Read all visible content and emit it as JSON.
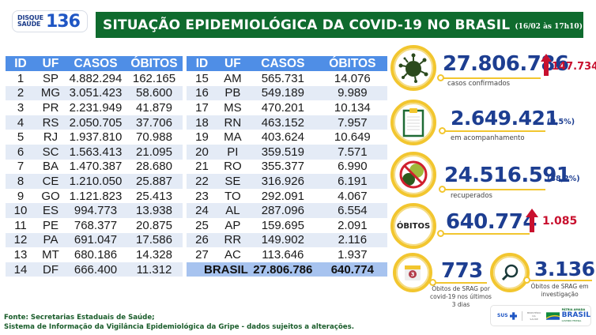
{
  "header": {
    "logo_small_line1": "DISQUE",
    "logo_small_line2": "SAÚDE",
    "logo_number": "136",
    "title": "SITUAÇÃO EPIDEMIOLÓGICA DA COVID-19 NO BRASIL",
    "date": "(16/02 às 17h10)"
  },
  "table": {
    "columns": [
      "ID",
      "UF",
      "CASOS",
      "ÓBITOS"
    ],
    "left_rows": [
      [
        "1",
        "SP",
        "4.882.294",
        "162.165"
      ],
      [
        "2",
        "MG",
        "3.051.423",
        "58.600"
      ],
      [
        "3",
        "PR",
        "2.231.949",
        "41.879"
      ],
      [
        "4",
        "RS",
        "2.050.705",
        "37.706"
      ],
      [
        "5",
        "RJ",
        "1.937.810",
        "70.988"
      ],
      [
        "6",
        "SC",
        "1.563.413",
        "21.095"
      ],
      [
        "7",
        "BA",
        "1.470.387",
        "28.680"
      ],
      [
        "8",
        "CE",
        "1.210.050",
        "25.887"
      ],
      [
        "9",
        "GO",
        "1.121.823",
        "25.413"
      ],
      [
        "10",
        "ES",
        "994.773",
        "13.938"
      ],
      [
        "11",
        "PE",
        "768.377",
        "20.875"
      ],
      [
        "12",
        "PA",
        "691.047",
        "17.586"
      ],
      [
        "13",
        "MT",
        "680.186",
        "14.328"
      ],
      [
        "14",
        "DF",
        "666.400",
        "11.312"
      ]
    ],
    "right_rows": [
      [
        "15",
        "AM",
        "565.731",
        "14.076"
      ],
      [
        "16",
        "PB",
        "549.189",
        "9.989"
      ],
      [
        "17",
        "MS",
        "470.201",
        "10.134"
      ],
      [
        "18",
        "RN",
        "463.152",
        "7.957"
      ],
      [
        "19",
        "MA",
        "403.624",
        "10.649"
      ],
      [
        "20",
        "PI",
        "359.519",
        "7.571"
      ],
      [
        "21",
        "RO",
        "355.377",
        "6.990"
      ],
      [
        "22",
        "SE",
        "316.926",
        "6.191"
      ],
      [
        "23",
        "TO",
        "292.091",
        "4.067"
      ],
      [
        "24",
        "AL",
        "287.096",
        "6.554"
      ],
      [
        "25",
        "AP",
        "159.695",
        "2.091"
      ],
      [
        "26",
        "RR",
        "149.902",
        "2.116"
      ],
      [
        "27",
        "AC",
        "113.646",
        "1.937"
      ]
    ],
    "total": {
      "label": "BRASIL",
      "casos": "27.806.786",
      "obitos": "640.774"
    }
  },
  "stats": {
    "confirmed": {
      "value": "27.806.786",
      "delta": "147.734",
      "caption": "casos confirmados",
      "icon": "virus-icon"
    },
    "monitoring": {
      "value": "2.649.421",
      "pct": "(9,5%)",
      "caption": "em acompanhamento",
      "icon": "clipboard-icon"
    },
    "recovered": {
      "value": "24.516.591",
      "pct": "(88,2%)",
      "caption": "recuperados",
      "icon": "no-virus-icon"
    },
    "deaths": {
      "badge": "ÓBITOS",
      "value": "640.774",
      "delta": "1.085"
    },
    "srag_recent": {
      "value": "773",
      "caption_l1": "Óbitos de SRAG por",
      "caption_l2": "covid-19 nos últimos",
      "caption_l3": "3 dias",
      "calendar_num": "3",
      "icon": "calendar-icon"
    },
    "srag_investigation": {
      "value": "3.136",
      "caption_l1": "Óbitos de SRAG em",
      "caption_l2": "investigação",
      "icon": "magnifier-icon"
    }
  },
  "footer": {
    "line1": "Fonte: Secretarias Estaduais de Saúde;",
    "line2": "Sistema de Informação da Vigilância Epidemiológica da Gripe - dados sujeitos a alterações."
  },
  "gov": {
    "sus": "SUS",
    "ministry_l1": "MINISTÉRIO DA",
    "ministry_l2": "SAÚDE",
    "patria": "PÁTRIA AMADA",
    "brasil": "BRASIL",
    "gov_sub": "GOVERNO FEDERAL"
  },
  "colors": {
    "title_green": "#0f6b2e",
    "table_header_blue": "#4f8ee6",
    "stat_blue": "#1d3e91",
    "ring_yellow": "#f2c62f",
    "alert_red": "#c8102e"
  }
}
